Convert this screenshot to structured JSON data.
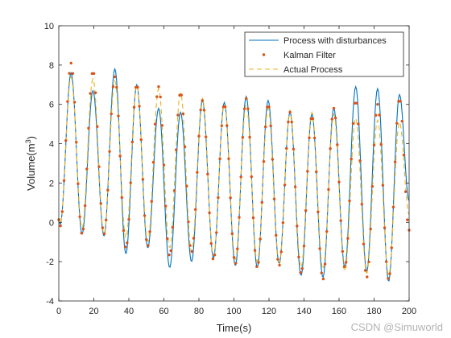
{
  "chart_data": {
    "type": "line",
    "title": "",
    "xlabel": "Time(s)",
    "ylabel_main": "Volume(m",
    "ylabel_sup": "3",
    "ylabel_close": ")",
    "xlim": [
      0,
      200
    ],
    "ylim": [
      -4,
      10
    ],
    "xticks": [
      0,
      20,
      40,
      60,
      80,
      100,
      120,
      140,
      160,
      180,
      200
    ],
    "yticks": [
      -4,
      -2,
      0,
      2,
      4,
      6,
      8,
      10
    ],
    "grid": false,
    "legend_position": "top-right",
    "period_s": 12.5,
    "peaks": [
      {
        "t": 7,
        "actual": 7.4,
        "disturbed": 7.6,
        "kalman": 8.1
      },
      {
        "t": 19.5,
        "actual": 7.3,
        "disturbed": 6.7,
        "kalman": 7.7
      },
      {
        "t": 32,
        "actual": 7.2,
        "disturbed": 7.8,
        "kalman": 7.4
      },
      {
        "t": 44.5,
        "actual": 7.0,
        "disturbed": 7.0,
        "kalman": 7.0
      },
      {
        "t": 57,
        "actual": 6.8,
        "disturbed": 5.8,
        "kalman": 6.9
      },
      {
        "t": 69.5,
        "actual": 6.6,
        "disturbed": 5.6,
        "kalman": 6.6
      },
      {
        "t": 82,
        "actual": 6.3,
        "disturbed": 6.2,
        "kalman": 6.2
      },
      {
        "t": 94.5,
        "actual": 6.0,
        "disturbed": 6.1,
        "kalman": 6.0
      },
      {
        "t": 107,
        "actual": 6.0,
        "disturbed": 6.4,
        "kalman": 6.3
      },
      {
        "t": 119.5,
        "actual": 5.8,
        "disturbed": 6.2,
        "kalman": 6.0
      },
      {
        "t": 132,
        "actual": 5.7,
        "disturbed": 5.6,
        "kalman": 5.6
      },
      {
        "t": 144.5,
        "actual": 5.6,
        "disturbed": 5.5,
        "kalman": 5.4
      },
      {
        "t": 157,
        "actual": 5.5,
        "disturbed": 5.8,
        "kalman": 5.8
      },
      {
        "t": 169.5,
        "actual": 5.3,
        "disturbed": 6.9,
        "kalman": 6.2
      },
      {
        "t": 182,
        "actual": 5.2,
        "disturbed": 6.8,
        "kalman": 6.0
      },
      {
        "t": 194.5,
        "actual": 5.1,
        "disturbed": 6.5,
        "kalman": 6.3
      }
    ],
    "troughs": [
      {
        "t": 0.8,
        "actual": -0.1,
        "disturbed": -0.1,
        "kalman": -0.2
      },
      {
        "t": 13.3,
        "actual": -0.3,
        "disturbed": -0.6,
        "kalman": -0.6
      },
      {
        "t": 25.8,
        "actual": -0.6,
        "disturbed": -0.7,
        "kalman": -0.6
      },
      {
        "t": 38.3,
        "actual": -0.8,
        "disturbed": -1.6,
        "kalman": -1.3
      },
      {
        "t": 50.8,
        "actual": -1.0,
        "disturbed": -1.3,
        "kalman": -1.2
      },
      {
        "t": 63.3,
        "actual": -1.3,
        "disturbed": -2.3,
        "kalman": -1.7
      },
      {
        "t": 75.8,
        "actual": -1.5,
        "disturbed": -2.0,
        "kalman": -1.5
      },
      {
        "t": 88.3,
        "actual": -1.7,
        "disturbed": -1.8,
        "kalman": -1.9
      },
      {
        "t": 100.8,
        "actual": -1.9,
        "disturbed": -2.2,
        "kalman": -2.1
      },
      {
        "t": 113.3,
        "actual": -2.0,
        "disturbed": -2.3,
        "kalman": -2.3
      },
      {
        "t": 125.8,
        "actual": -2.2,
        "disturbed": -2.1,
        "kalman": -2.2
      },
      {
        "t": 138.3,
        "actual": -2.3,
        "disturbed": -2.7,
        "kalman": -2.6
      },
      {
        "t": 150.8,
        "actual": -2.4,
        "disturbed": -2.8,
        "kalman": -2.9
      },
      {
        "t": 163.3,
        "actual": -2.5,
        "disturbed": -2.3,
        "kalman": -2.3
      },
      {
        "t": 175.8,
        "actual": -2.6,
        "disturbed": -2.5,
        "kalman": -2.8
      },
      {
        "t": 188.3,
        "actual": -2.7,
        "disturbed": -3.0,
        "kalman": -2.9
      }
    ],
    "end_value": {
      "t": 200,
      "actual": 0.4,
      "disturbed": 1.1,
      "kalman": -0.4
    },
    "series": [
      {
        "key": "disturbed",
        "name": "Process with disturbances",
        "style": "solid",
        "color": "#0072BD"
      },
      {
        "key": "kalman",
        "name": "Kalman Filter",
        "style": "dots",
        "color": "#D95319"
      },
      {
        "key": "actual",
        "name": "Actual Process",
        "style": "dashed",
        "color": "#EDB120"
      }
    ]
  },
  "watermark": "CSDN @Simuworld"
}
